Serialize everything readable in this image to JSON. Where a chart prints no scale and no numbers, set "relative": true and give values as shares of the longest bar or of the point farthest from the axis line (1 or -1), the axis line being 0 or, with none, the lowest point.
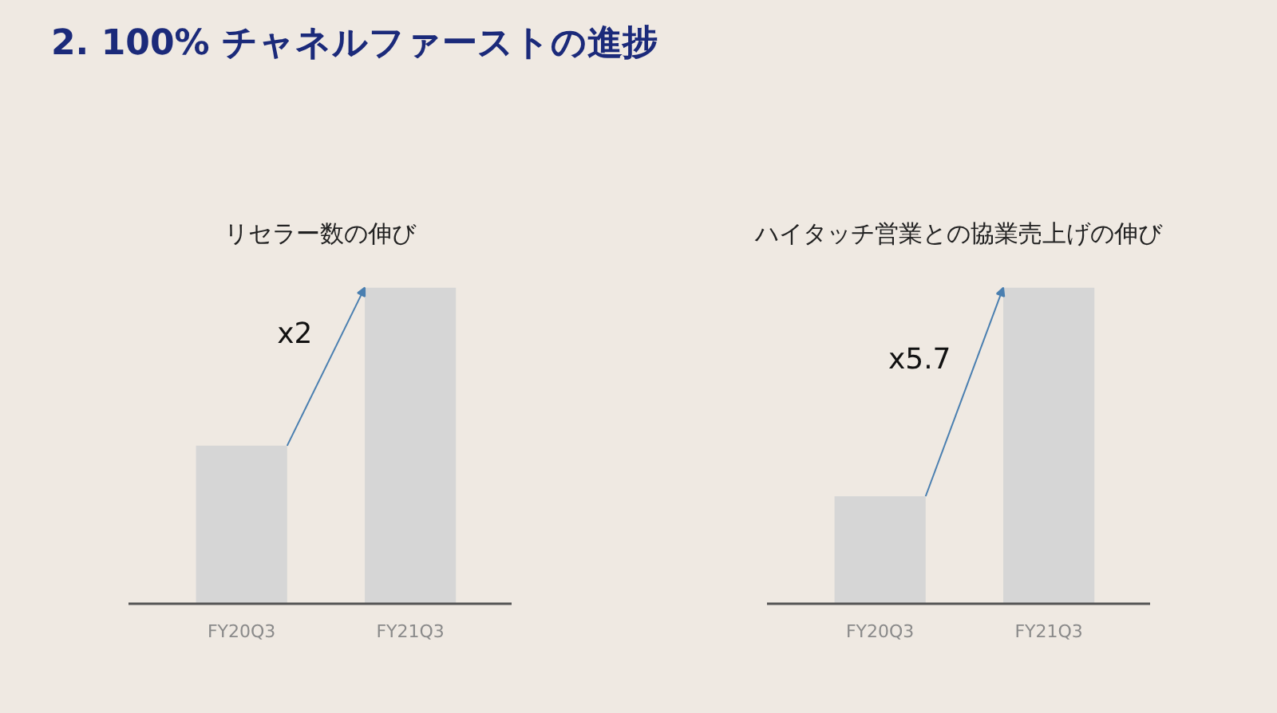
{
  "chart_data": [
    {
      "type": "bar",
      "title": "2. 100% チャネルファーストの進捗",
      "subtitle": "リセラー数の伸び",
      "categories": [
        "FY20Q3",
        "FY21Q3"
      ],
      "values": [
        0.5,
        1
      ],
      "color": "#d6d6d6",
      "relative": true,
      "annotations": [
        "x2"
      ],
      "grid": false
    },
    {
      "type": "bar",
      "subtitle": "ハイタッチ営業との協業売上げの伸び",
      "categories": [
        "FY20Q3",
        "FY21Q3"
      ],
      "values": [
        0.34,
        1
      ],
      "color": "#d6d6d6",
      "relative": true,
      "annotations": [
        "x5.7"
      ],
      "grid": false
    }
  ]
}
